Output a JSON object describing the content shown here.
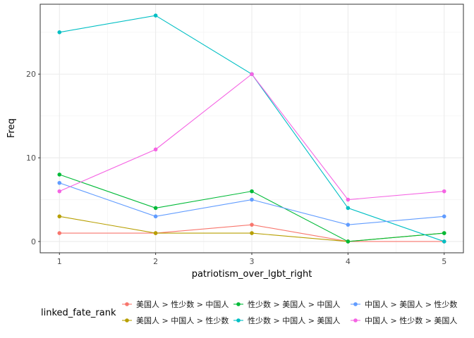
{
  "chart_data": {
    "type": "line",
    "xlabel": "patriotism_over_lgbt_right",
    "ylabel": "Freq",
    "x": [
      1,
      2,
      3,
      4,
      5
    ],
    "x_ticks": [
      "1",
      "2",
      "3",
      "4",
      "5"
    ],
    "y_ticks": [
      "0",
      "10",
      "20"
    ],
    "xlim": [
      0.8,
      5.2
    ],
    "ylim": [
      -1.35,
      28.35
    ],
    "grid": true,
    "legend_position": "bottom",
    "legend_title": "linked_fate_rank",
    "series": [
      {
        "name": "美国人 > 性少数 > 中国人",
        "color": "#F8766D",
        "values": [
          1,
          1,
          2,
          0,
          0
        ]
      },
      {
        "name": "美国人 > 中国人 > 性少数",
        "color": "#B79F00",
        "values": [
          3,
          1,
          1,
          0,
          1
        ]
      },
      {
        "name": "性少数 > 美国人 > 中国人",
        "color": "#00BA38",
        "values": [
          8,
          4,
          6,
          0,
          1
        ]
      },
      {
        "name": "性少数 > 中国人 > 美国人",
        "color": "#00BFC4",
        "values": [
          25,
          27,
          20,
          4,
          0
        ]
      },
      {
        "name": "中国人 > 美国人 > 性少数",
        "color": "#619CFF",
        "values": [
          7,
          3,
          5,
          2,
          3
        ]
      },
      {
        "name": "中国人 > 性少数 > 美国人",
        "color": "#F564E3",
        "values": [
          6,
          11,
          20,
          5,
          6
        ]
      }
    ]
  }
}
